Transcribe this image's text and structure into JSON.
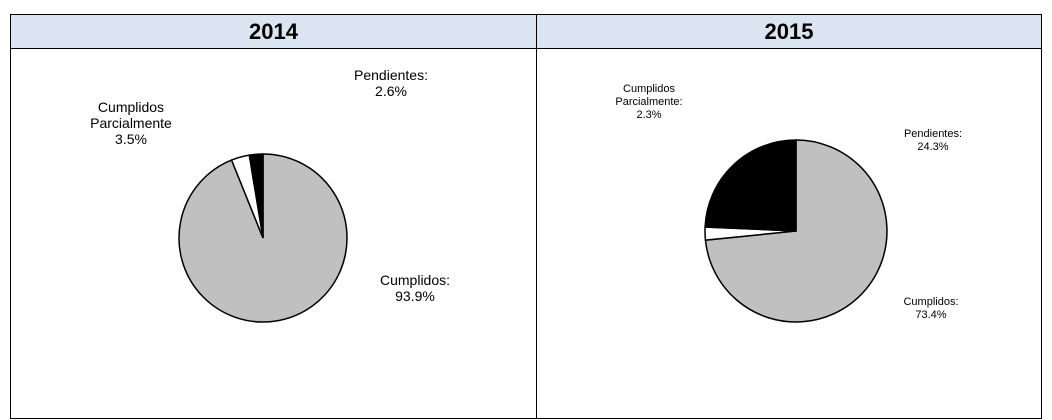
{
  "chart_data": [
    {
      "type": "pie",
      "title": "2014",
      "categories": [
        "Cumplidos",
        "Cumplidos Parcialmente",
        "Pendientes"
      ],
      "values": [
        93.9,
        3.5,
        2.6
      ],
      "colors": [
        "#c0c0c0",
        "#ffffff",
        "#000000"
      ],
      "labels": {
        "cumplidos": {
          "name": "Cumplidos:",
          "value": "93.9%"
        },
        "parcial": {
          "name1": "Cumplidos",
          "name2": "Parcialmente",
          "value": "3.5%"
        },
        "pendientes": {
          "name": "Pendientes:",
          "value": "2.6%"
        }
      }
    },
    {
      "type": "pie",
      "title": "2015",
      "categories": [
        "Cumplidos",
        "Cumplidos Parcialmente",
        "Pendientes"
      ],
      "values": [
        73.4,
        2.3,
        24.3
      ],
      "colors": [
        "#c0c0c0",
        "#ffffff",
        "#000000"
      ],
      "labels": {
        "cumplidos": {
          "name": "Cumplidos:",
          "value": "73.4%"
        },
        "parcial": {
          "name1": "Cumplidos",
          "name2": "Parcialmente:",
          "value": "2.3%"
        },
        "pendientes": {
          "name": "Pendientes:",
          "value": "24.3%"
        }
      }
    }
  ]
}
